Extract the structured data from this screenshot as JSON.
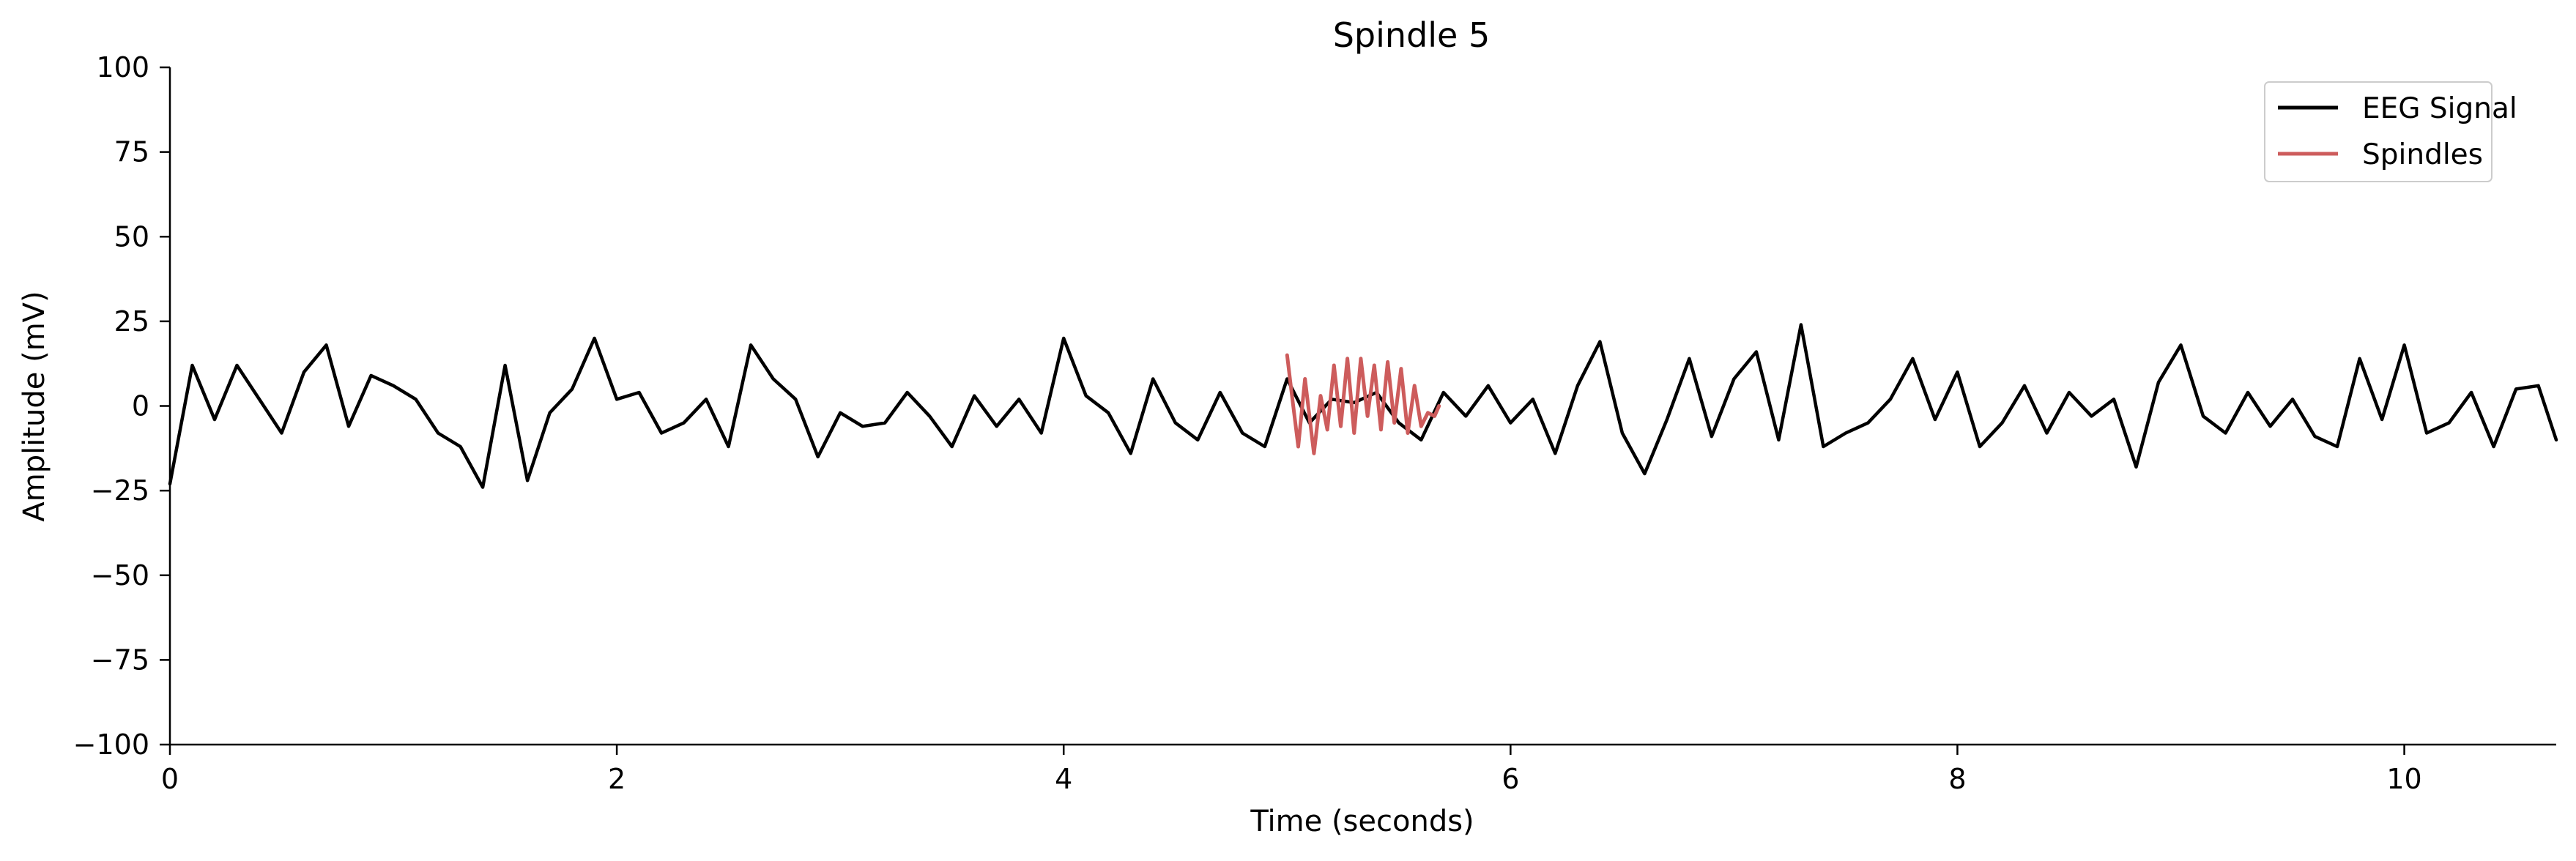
{
  "chart_data": {
    "type": "line",
    "title": "Spindle 5",
    "xlabel": "Time (seconds)",
    "ylabel": "Amplitude (mV)",
    "xlim": [
      0,
      10.68
    ],
    "ylim": [
      -100,
      100
    ],
    "x_ticks": [
      0,
      2,
      4,
      6,
      8,
      10
    ],
    "x_tick_labels": [
      "0",
      "2",
      "4",
      "6",
      "8",
      "10"
    ],
    "y_ticks": [
      100,
      75,
      50,
      25,
      0,
      -25,
      -50,
      -75,
      -100
    ],
    "y_tick_labels": [
      "100",
      "75",
      "50",
      "25",
      "0",
      "−25",
      "−50",
      "−75",
      "−100"
    ],
    "grid": false,
    "legend_position": "top-right",
    "series": [
      {
        "name": "EEG Signal",
        "color": "#000000",
        "x": [
          0,
          0.1,
          0.2,
          0.3,
          0.4,
          0.5,
          0.6,
          0.7,
          0.8,
          0.9,
          1.0,
          1.1,
          1.2,
          1.3,
          1.4,
          1.5,
          1.6,
          1.7,
          1.8,
          1.9,
          2.0,
          2.1,
          2.2,
          2.3,
          2.4,
          2.5,
          2.6,
          2.7,
          2.8,
          2.9,
          3.0,
          3.1,
          3.2,
          3.3,
          3.4,
          3.5,
          3.6,
          3.7,
          3.8,
          3.9,
          4.0,
          4.1,
          4.2,
          4.3,
          4.4,
          4.5,
          4.6,
          4.7,
          4.8,
          4.9,
          5.0,
          5.1,
          5.2,
          5.3,
          5.4,
          5.5,
          5.6,
          5.7,
          5.8,
          5.9,
          6.0,
          6.1,
          6.2,
          6.3,
          6.4,
          6.5,
          6.6,
          6.7,
          6.8,
          6.9,
          7.0,
          7.1,
          7.2,
          7.3,
          7.4,
          7.5,
          7.6,
          7.7,
          7.8,
          7.9,
          8.0,
          8.1,
          8.2,
          8.3,
          8.4,
          8.5,
          8.6,
          8.7,
          8.8,
          8.9,
          9.0,
          9.1,
          9.2,
          9.3,
          9.4,
          9.5,
          9.6,
          9.7,
          9.8,
          9.9,
          10.0,
          10.1,
          10.2,
          10.3,
          10.4,
          10.5,
          10.6,
          10.68
        ],
        "values": [
          -23,
          12,
          -4,
          12,
          2,
          -8,
          10,
          18,
          -6,
          9,
          6,
          2,
          -8,
          -12,
          -24,
          12,
          -22,
          -2,
          5,
          20,
          2,
          4,
          -8,
          -5,
          2,
          -12,
          18,
          8,
          2,
          -15,
          -2,
          -6,
          -5,
          4,
          -3,
          -12,
          3,
          -6,
          2,
          -8,
          20,
          3,
          -2,
          -14,
          8,
          -5,
          -10,
          4,
          -8,
          -12,
          8,
          -5,
          2,
          1,
          4,
          -5,
          -10,
          4,
          -3,
          6,
          -5,
          2,
          -14,
          6,
          19,
          -8,
          -20,
          -4,
          14,
          -9,
          8,
          16,
          -10,
          24,
          -12,
          -8,
          -5,
          2,
          14,
          -4,
          10,
          -12,
          -5,
          6,
          -8,
          4,
          -3,
          2,
          -18,
          7,
          18,
          -3,
          -8,
          4,
          -6,
          2,
          -9,
          -12,
          14,
          -4,
          18,
          -8,
          -5,
          4,
          -12,
          5,
          6,
          -10
        ]
      },
      {
        "name": "Spindles",
        "color": "#cd5c5c",
        "x": [
          5.0,
          5.02,
          5.05,
          5.08,
          5.12,
          5.15,
          5.18,
          5.21,
          5.24,
          5.27,
          5.3,
          5.33,
          5.36,
          5.39,
          5.42,
          5.45,
          5.48,
          5.51,
          5.54,
          5.57,
          5.6,
          5.63,
          5.66,
          5.68
        ],
        "values": [
          15,
          4,
          -12,
          8,
          -14,
          3,
          -7,
          12,
          -6,
          14,
          -8,
          14,
          -3,
          12,
          -7,
          13,
          -5,
          11,
          -8,
          6,
          -6,
          -2,
          -3,
          0
        ]
      }
    ]
  }
}
